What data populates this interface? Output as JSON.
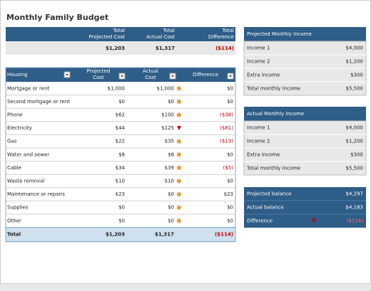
{
  "title": "Monthly Family Budget",
  "summary": {
    "headers": [
      [
        "Total",
        "Projected Cost"
      ],
      [
        "Total",
        "Actual Cost"
      ],
      [
        "Total",
        "Difference"
      ]
    ],
    "values": [
      "$1,203",
      "$1,317",
      "($114)"
    ]
  },
  "housing": {
    "headers": [
      "Housing",
      [
        "Projected",
        "Cost"
      ],
      [
        "Actual",
        "Cost"
      ],
      "Difference"
    ],
    "rows": [
      [
        "Mortgage or rent",
        "$1,000",
        "$1,000",
        "$0",
        "right"
      ],
      [
        "Second mortgage or rent",
        "$0",
        "$0",
        "$0",
        "right"
      ],
      [
        "Phone",
        "$62",
        "$100",
        "($38)",
        "right"
      ],
      [
        "Electricity",
        "$44",
        "$125",
        "($81)",
        "down"
      ],
      [
        "Gas",
        "$22",
        "$35",
        "($13)",
        "right"
      ],
      [
        "Water and sewer",
        "$8",
        "$8",
        "$0",
        "right"
      ],
      [
        "Cable",
        "$34",
        "$39",
        "($5)",
        "right"
      ],
      [
        "Waste removal",
        "$10",
        "$10",
        "$0",
        "right"
      ],
      [
        "Maintenance or repairs",
        "$23",
        "$0",
        "$23",
        "right"
      ],
      [
        "Supplies",
        "$0",
        "$0",
        "$0",
        "right"
      ],
      [
        "Other",
        "$0",
        "$0",
        "$0",
        "right"
      ]
    ],
    "total": [
      "Total",
      "$1,203",
      "$1,317",
      "($114)"
    ]
  },
  "projected_income": {
    "title": "Projected Monthly Income",
    "rows": [
      [
        "Income 1",
        "$4,000"
      ],
      [
        "Income 2",
        "$1,200"
      ],
      [
        "Extra income",
        "$300"
      ],
      [
        "Total monthly income",
        "$5,500"
      ]
    ]
  },
  "actual_income": {
    "title": "Actual Monthly Income",
    "rows": [
      [
        "Income 1",
        "$4,000"
      ],
      [
        "Income 2",
        "$1,200"
      ],
      [
        "Extra income",
        "$300"
      ],
      [
        "Total monthly income",
        "$5,500"
      ]
    ]
  },
  "balance": {
    "rows": [
      [
        "Projected balance",
        "$4,297"
      ],
      [
        "Actual balance",
        "$4,183"
      ],
      [
        "Difference",
        "($114)",
        "down"
      ]
    ]
  }
}
